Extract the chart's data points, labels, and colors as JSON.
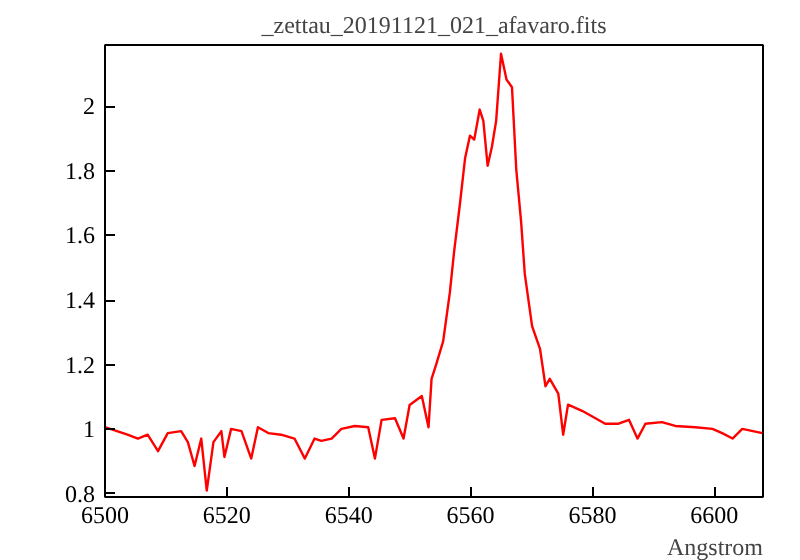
{
  "chart_data": {
    "type": "line",
    "title": "_zettau_20191121_021_afavaro.fits",
    "xlabel": "Angstrom",
    "x": [
      6500.1,
      6503.7,
      6505.4,
      6507.0,
      6508.7,
      6510.3,
      6512.5,
      6513.6,
      6514.7,
      6515.8,
      6516.7,
      6517.8,
      6519.1,
      6519.6,
      6520.7,
      6522.4,
      6524.0,
      6525.1,
      6526.8,
      6528.9,
      6531.1,
      6532.8,
      6534.4,
      6535.5,
      6537.2,
      6538.8,
      6541.0,
      6543.2,
      6544.3,
      6545.4,
      6547.6,
      6549.0,
      6550.0,
      6552.0,
      6553.1,
      6553.6,
      6554.4,
      6555.5,
      6556.6,
      6557.3,
      6558.2,
      6559.1,
      6559.9,
      6560.6,
      6561.5,
      6562.1,
      6562.8,
      6563.5,
      6564.2,
      6565.0,
      6565.9,
      6566.8,
      6567.5,
      6568.3,
      6568.9,
      6570.1,
      6571.4,
      6572.3,
      6573.0,
      6574.4,
      6575.2,
      6576.0,
      6578.3,
      6580.5,
      6582.1,
      6584.3,
      6586.0,
      6587.4,
      6588.7,
      6591.4,
      6593.6,
      6596.9,
      6599.7,
      6601.3,
      6603.0,
      6604.6,
      6607.9
    ],
    "series": [
      {
        "color": "#ff0000",
        "values": [
          1.006,
          0.983,
          0.971,
          0.983,
          0.932,
          0.988,
          0.994,
          0.96,
          0.886,
          0.971,
          0.81,
          0.96,
          0.994,
          0.914,
          1.001,
          0.994,
          0.909,
          1.006,
          0.988,
          0.983,
          0.971,
          0.909,
          0.971,
          0.964,
          0.971,
          1.001,
          1.01,
          1.006,
          0.909,
          1.029,
          1.034,
          0.971,
          1.075,
          1.103,
          1.006,
          1.156,
          1.203,
          1.272,
          1.423,
          1.55,
          1.689,
          1.839,
          1.909,
          1.897,
          1.99,
          1.955,
          1.816,
          1.874,
          1.955,
          2.163,
          2.083,
          2.059,
          1.805,
          1.642,
          1.481,
          1.319,
          1.249,
          1.133,
          1.156,
          1.11,
          0.983,
          1.076,
          1.057,
          1.034,
          1.017,
          1.017,
          1.029,
          0.971,
          1.017,
          1.022,
          1.01,
          1.006,
          1.001,
          0.988,
          0.971,
          1.001,
          0.988
        ]
      }
    ],
    "xlim": [
      6500,
      6608
    ],
    "ylim": [
      0.79,
      2.19
    ],
    "xticks": [
      6500,
      6520,
      6540,
      6560,
      6580,
      6600
    ],
    "yticks": [
      0.8,
      1,
      1.2,
      1.4,
      1.6,
      1.8,
      2
    ],
    "grid": false,
    "line_style": "solid",
    "marker": "none"
  }
}
